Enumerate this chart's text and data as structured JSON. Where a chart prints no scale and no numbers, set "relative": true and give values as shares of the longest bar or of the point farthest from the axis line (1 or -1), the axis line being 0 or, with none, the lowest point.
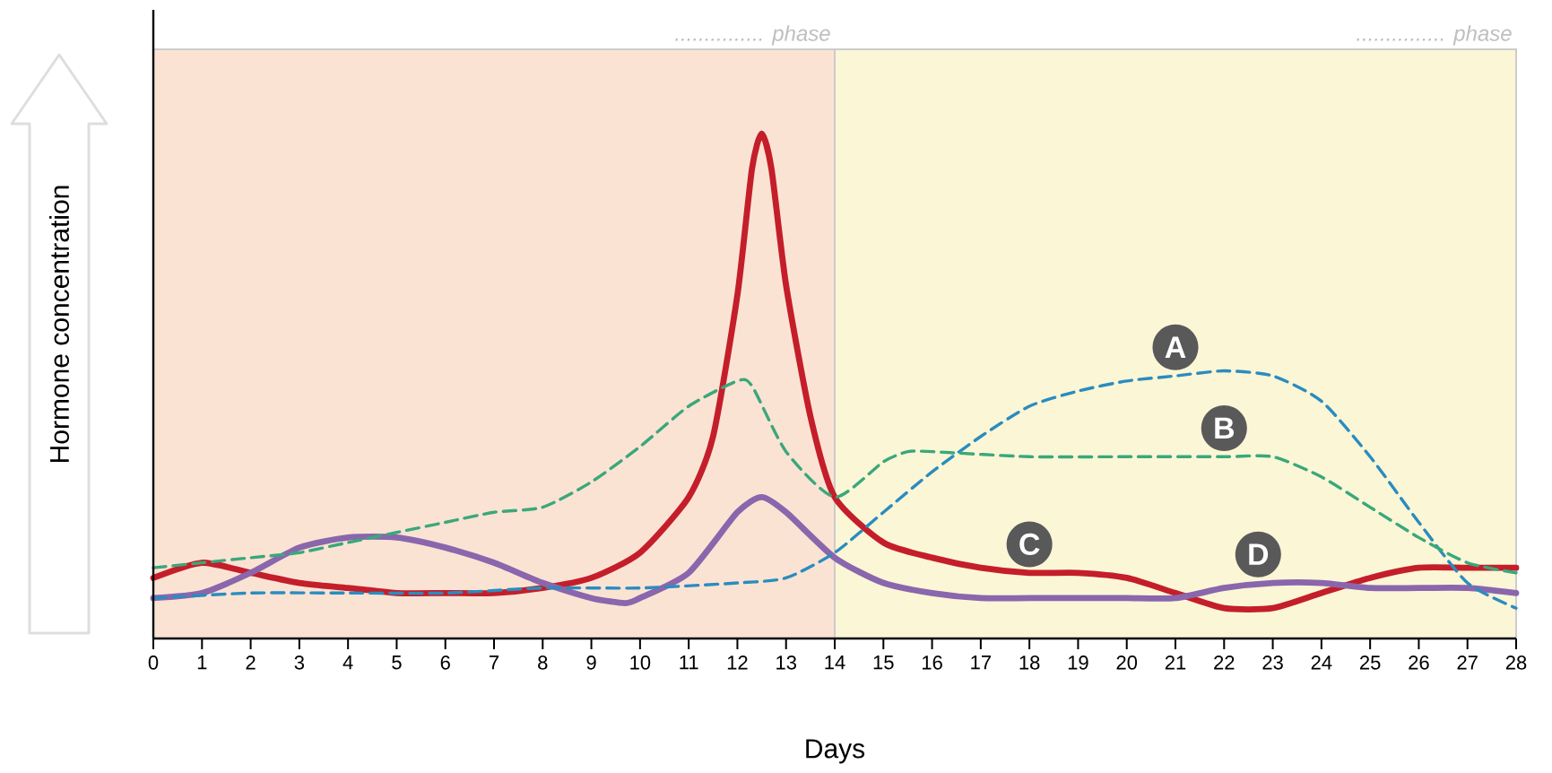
{
  "chart_data": {
    "type": "line",
    "relative": true,
    "xlabel": "Days",
    "ylabel": "Hormone concentration",
    "xlim": [
      0,
      28
    ],
    "xticks": [
      0,
      1,
      2,
      3,
      4,
      5,
      6,
      7,
      8,
      9,
      10,
      11,
      12,
      13,
      14,
      15,
      16,
      17,
      18,
      19,
      20,
      21,
      22,
      23,
      24,
      25,
      26,
      27,
      28
    ],
    "bands": [
      {
        "axis": "x",
        "from": 0,
        "to": 14,
        "label": "............... phase",
        "color": "#fbe3d4"
      },
      {
        "axis": "x",
        "from": 14,
        "to": 28,
        "label": "............... phase",
        "color": "#fbf6d6"
      }
    ],
    "series": [
      {
        "color": "#c41e2a",
        "line_style": "solid",
        "x": [
          0,
          1,
          2,
          3,
          4,
          5,
          6,
          7,
          8,
          9,
          10,
          11,
          11.5,
          12,
          12.3,
          12.5,
          12.7,
          13,
          13.5,
          14,
          15,
          16,
          17,
          18,
          19,
          20,
          21,
          22,
          23,
          24,
          25,
          26,
          27,
          28
        ],
        "values": [
          0.12,
          0.15,
          0.13,
          0.11,
          0.1,
          0.09,
          0.09,
          0.09,
          0.1,
          0.12,
          0.17,
          0.28,
          0.4,
          0.68,
          0.93,
          1,
          0.93,
          0.7,
          0.44,
          0.28,
          0.19,
          0.16,
          0.14,
          0.13,
          0.13,
          0.12,
          0.09,
          0.06,
          0.06,
          0.09,
          0.12,
          0.14,
          0.14,
          0.14
        ]
      },
      {
        "color": "#8a66ad",
        "line_style": "solid",
        "x": [
          0,
          1,
          2,
          3,
          4,
          5,
          6,
          7,
          8,
          9,
          9.7,
          10,
          11,
          12,
          12.5,
          13,
          14,
          15,
          16,
          17,
          18,
          19,
          20,
          21,
          22,
          23,
          24,
          25,
          26,
          27,
          28
        ],
        "values": [
          0.08,
          0.09,
          0.13,
          0.18,
          0.2,
          0.2,
          0.18,
          0.15,
          0.11,
          0.08,
          0.07,
          0.08,
          0.13,
          0.25,
          0.28,
          0.25,
          0.16,
          0.11,
          0.09,
          0.08,
          0.08,
          0.08,
          0.08,
          0.08,
          0.1,
          0.11,
          0.11,
          0.1,
          0.1,
          0.1,
          0.09
        ]
      },
      {
        "color": "#2a8cbf",
        "line_style": "dashed",
        "x": [
          0,
          2,
          4,
          6,
          8,
          10,
          12,
          13,
          14,
          15,
          16,
          17,
          18,
          19,
          20,
          21,
          22,
          23,
          24,
          25,
          26,
          27,
          28
        ],
        "values": [
          0.08,
          0.09,
          0.09,
          0.09,
          0.1,
          0.1,
          0.11,
          0.12,
          0.17,
          0.25,
          0.33,
          0.4,
          0.46,
          0.49,
          0.51,
          0.52,
          0.53,
          0.52,
          0.47,
          0.36,
          0.23,
          0.11,
          0.06
        ]
      },
      {
        "color": "#3aa87a",
        "line_style": "dashed",
        "x": [
          0,
          1,
          2,
          3,
          4,
          5,
          6,
          7,
          8,
          9,
          10,
          11,
          12,
          12.3,
          13,
          14,
          15,
          15.5,
          16,
          18,
          20,
          22,
          23,
          24,
          25,
          26,
          27,
          28
        ],
        "values": [
          0.14,
          0.15,
          0.16,
          0.17,
          0.19,
          0.21,
          0.23,
          0.25,
          0.26,
          0.31,
          0.38,
          0.46,
          0.51,
          0.5,
          0.37,
          0.28,
          0.35,
          0.37,
          0.37,
          0.36,
          0.36,
          0.36,
          0.36,
          0.32,
          0.26,
          0.2,
          0.15,
          0.13
        ]
      }
    ],
    "annotations": [
      {
        "text": "A",
        "x": 21,
        "y": 0.52
      },
      {
        "text": "B",
        "x": 22,
        "y": 0.36
      },
      {
        "text": "C",
        "x": 18,
        "y": 0.13
      },
      {
        "text": "D",
        "x": 22.7,
        "y": 0.11
      }
    ]
  }
}
